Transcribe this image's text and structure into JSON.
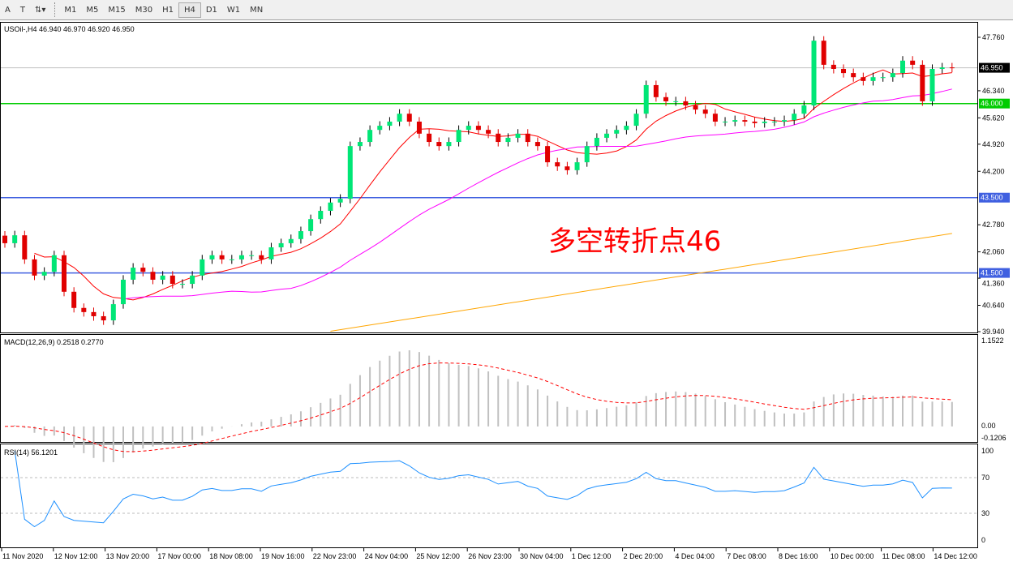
{
  "toolbar": {
    "icons": [
      "text-icon",
      "text-label-icon",
      "arrows-icon"
    ],
    "timeframes": [
      "M1",
      "M5",
      "M15",
      "M30",
      "H1",
      "H4",
      "D1",
      "W1",
      "MN"
    ],
    "active": "H4"
  },
  "chart_title": "USOil-,H4  46.940 46.970 46.920 46.950",
  "macd_label": "MACD(12,26,9) 0.2518 0.2770",
  "rsi_label": "RSI(14) 56.1201",
  "annotation": "多空转折点46",
  "chart_data": {
    "type": "candlestick",
    "symbol": "USOil-",
    "timeframe": "H4",
    "price_axis": {
      "ylim": [
        39.94,
        47.76
      ],
      "ticks": [
        "47.760",
        "46.340",
        "45.620",
        "44.920",
        "44.200",
        "42.780",
        "42.060",
        "41.360",
        "40.640",
        "39.940"
      ]
    },
    "closes": [
      42.29,
      42.5,
      41.86,
      41.43,
      41.53,
      41.97,
      41.0,
      40.57,
      40.46,
      40.35,
      40.24,
      40.67,
      41.32,
      41.64,
      41.53,
      41.32,
      41.43,
      41.21,
      41.21,
      41.43,
      41.86,
      41.97,
      41.86,
      41.86,
      41.97,
      41.97,
      41.86,
      42.18,
      42.29,
      42.4,
      42.61,
      42.93,
      43.15,
      43.37,
      43.47,
      44.87,
      44.98,
      45.3,
      45.41,
      45.52,
      45.73,
      45.52,
      45.2,
      44.98,
      44.87,
      44.98,
      45.3,
      45.41,
      45.3,
      45.2,
      44.98,
      45.09,
      45.2,
      44.98,
      44.87,
      44.44,
      44.33,
      44.23,
      44.44,
      44.87,
      45.09,
      45.2,
      45.3,
      45.41,
      45.73,
      46.49,
      46.17,
      46.06,
      46.06,
      45.95,
      45.84,
      45.73,
      45.52,
      45.52,
      45.56,
      45.52,
      45.48,
      45.52,
      45.52,
      45.56,
      45.73,
      45.95,
      47.67,
      47.03,
      46.92,
      46.81,
      46.7,
      46.6,
      46.7,
      46.7,
      46.81,
      47.14,
      47.03,
      46.06,
      46.92,
      46.96,
      46.95
    ],
    "ma_orange": [
      {
        "bar": 33,
        "value": 39.95
      },
      {
        "bar": 96,
        "value": 42.55
      }
    ],
    "hlines": [
      {
        "value": 46.0,
        "label": "46.000",
        "color": "#00cc00"
      },
      {
        "value": 43.5,
        "label": "43.500",
        "color": "#4060e0"
      },
      {
        "value": 41.5,
        "label": "41.500",
        "color": "#4060e0"
      }
    ],
    "current_price": {
      "value": 46.95,
      "label": "46.950"
    },
    "macd": {
      "ylim": [
        -0.1206,
        1.1522
      ],
      "ticks": [
        "1.1522",
        "0.00",
        "-0.1206"
      ]
    },
    "rsi": {
      "ylim": [
        0,
        100
      ],
      "ticks": [
        "100",
        "70",
        "30",
        "0"
      ],
      "levels": [
        70,
        30
      ]
    },
    "time_labels": [
      "11 Nov 2020",
      "12 Nov 12:00",
      "13 Nov 20:00",
      "17 Nov 00:00",
      "18 Nov 08:00",
      "19 Nov 16:00",
      "22 Nov 23:00",
      "24 Nov 04:00",
      "25 Nov 12:00",
      "26 Nov 23:00",
      "30 Nov 04:00",
      "1 Dec 12:00",
      "2 Dec 20:00",
      "4 Dec 04:00",
      "7 Dec 08:00",
      "8 Dec 16:00",
      "10 Dec 00:00",
      "11 Dec 08:00",
      "14 Dec 12:00"
    ],
    "colors": {
      "bull": "#00e676",
      "bear": "#e00000",
      "ma_fast": "#ff0000",
      "ma_mid": "#ff00ff",
      "ma_slow": "#ffa500",
      "macd_hist": "#c0c0c0",
      "macd_signal": "#ff0000",
      "rsi": "#1e90ff"
    }
  }
}
